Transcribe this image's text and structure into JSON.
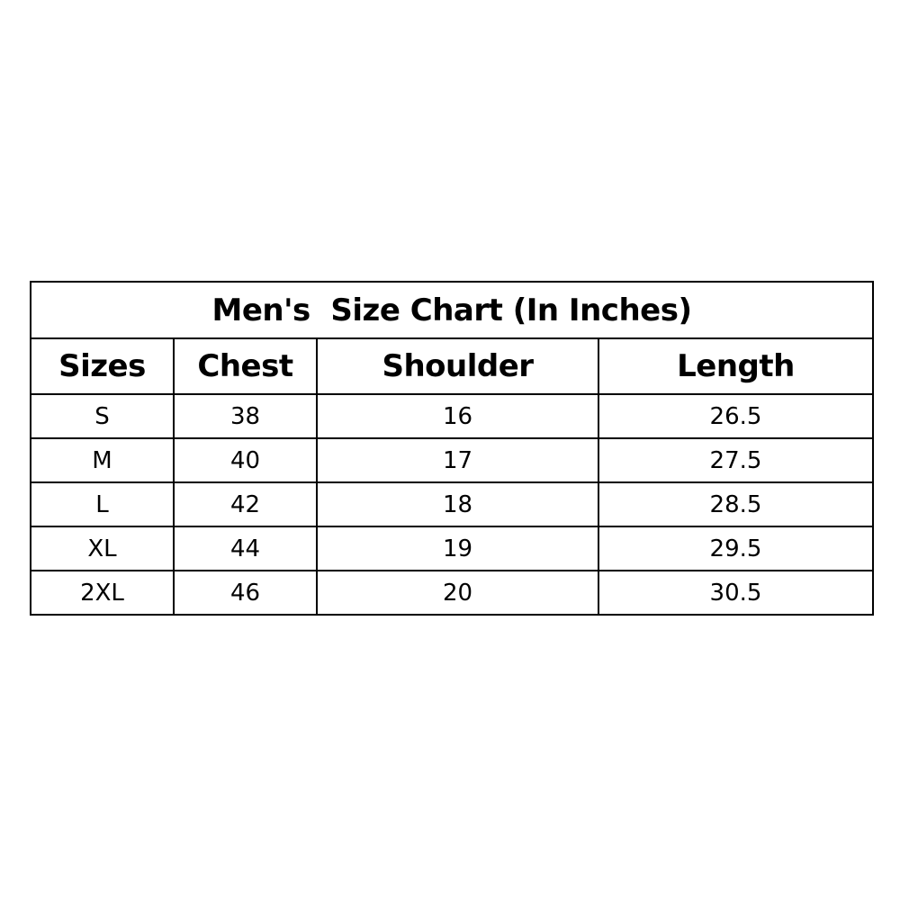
{
  "chart_data": {
    "type": "table",
    "title": "Men's  Size Chart (In Inches)",
    "columns": [
      "Sizes",
      "Chest",
      "Shoulder",
      "Length"
    ],
    "rows": [
      [
        "S",
        "38",
        "16",
        "26.5"
      ],
      [
        "M",
        "40",
        "17",
        "27.5"
      ],
      [
        "L",
        "42",
        "18",
        "28.5"
      ],
      [
        "XL",
        "44",
        "19",
        "29.5"
      ],
      [
        "2XL",
        "46",
        "20",
        "30.5"
      ]
    ]
  }
}
